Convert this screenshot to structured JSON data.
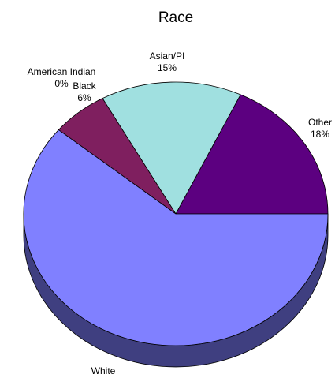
{
  "chart_data": {
    "type": "pie",
    "title": "Race",
    "style": "3d",
    "slices": [
      {
        "label": "Other",
        "percent_label": "18%",
        "value": 18,
        "color": "#5c0080"
      },
      {
        "label": "Asian/PI",
        "percent_label": "15%",
        "value": 15,
        "color": "#a0e0e0"
      },
      {
        "label": "Black",
        "percent_label": "6%",
        "value": 6,
        "color": "#7f1f5f"
      },
      {
        "label": "American Indian",
        "percent_label": "0%",
        "value": 0,
        "color": "#c8c8c8"
      },
      {
        "label": "White",
        "percent_label": "",
        "value": 61,
        "color": "#8080ff"
      }
    ],
    "side_color": "#3f3f80"
  }
}
